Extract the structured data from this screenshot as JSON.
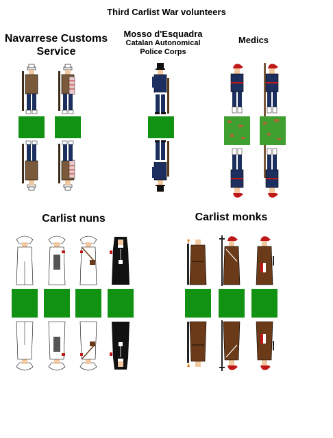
{
  "title": "Third Carlist War volunteers",
  "groups": {
    "navarrese": {
      "title_line1": "Navarrese Customs",
      "title_line2": "Service"
    },
    "mosso": {
      "title_line1": "Mosso d'Esquadra",
      "subtitle_line1": "Catalan Autonomical",
      "subtitle_line2": "Police Corps"
    },
    "medics": {
      "title": "Medics"
    },
    "nuns": {
      "title": "Carlist nuns"
    },
    "monks": {
      "title": "Carlist monks"
    }
  },
  "colors": {
    "base_green": "#129212",
    "medic_base": "#3f9f2f",
    "medic_spot": "#a86a3a",
    "customs_coat": "#7a5a3a",
    "navy": "#1c2f5e",
    "medic_red": "#c01818",
    "monk_brown": "#6b3a18",
    "nun_black": "#111111"
  }
}
